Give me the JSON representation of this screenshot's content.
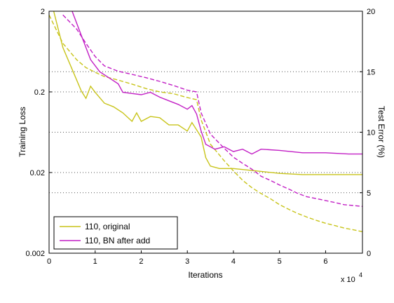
{
  "chart_data": {
    "type": "line",
    "title": "",
    "xlabel": "Iterations",
    "x_multiplier_label": "x 10",
    "x_multiplier_exp": "4",
    "ylabel_left": "Training Loss",
    "ylabel_right": "Test Error (%)",
    "x_ticks": [
      "0",
      "1",
      "2",
      "3",
      "4",
      "5",
      "6"
    ],
    "y_left_ticks": [
      "2",
      "0.2",
      "0.02",
      "0.002"
    ],
    "y_right_ticks": [
      "20",
      "15",
      "10",
      "5",
      "0"
    ],
    "xlim": [
      0,
      6.8
    ],
    "ylim_left": [
      0.002,
      2
    ],
    "ylim_right": [
      0,
      20
    ],
    "y_left_scale": "log",
    "grid": "dotted horizontal",
    "legend_position": "bottom-left",
    "series": [
      {
        "name": "110, original",
        "color": "#c8c41a",
        "train_loss": [
          [
            0.0,
            1.8
          ],
          [
            0.3,
            0.8
          ],
          [
            0.6,
            0.5
          ],
          [
            0.8,
            0.4
          ],
          [
            1.0,
            0.35
          ],
          [
            1.2,
            0.31
          ],
          [
            1.5,
            0.28
          ],
          [
            1.8,
            0.25
          ],
          [
            2.1,
            0.22
          ],
          [
            2.4,
            0.2
          ],
          [
            2.7,
            0.19
          ],
          [
            3.0,
            0.17
          ],
          [
            3.2,
            0.16
          ],
          [
            3.3,
            0.09
          ],
          [
            3.5,
            0.045
          ],
          [
            3.8,
            0.028
          ],
          [
            4.0,
            0.021
          ],
          [
            4.2,
            0.016
          ],
          [
            4.4,
            0.013
          ],
          [
            4.6,
            0.011
          ],
          [
            4.8,
            0.0095
          ],
          [
            5.0,
            0.008
          ],
          [
            5.2,
            0.007
          ],
          [
            5.4,
            0.0062
          ],
          [
            5.6,
            0.0056
          ],
          [
            5.8,
            0.0051
          ],
          [
            6.0,
            0.0047
          ],
          [
            6.2,
            0.0044
          ],
          [
            6.4,
            0.0041
          ],
          [
            6.6,
            0.0039
          ],
          [
            6.8,
            0.0037
          ]
        ],
        "test_error": [
          [
            0.1,
            20
          ],
          [
            0.3,
            17
          ],
          [
            0.5,
            15.2
          ],
          [
            0.7,
            13.4
          ],
          [
            0.8,
            12.8
          ],
          [
            0.9,
            13.8
          ],
          [
            1.0,
            13.3
          ],
          [
            1.2,
            12.4
          ],
          [
            1.4,
            12.1
          ],
          [
            1.6,
            11.6
          ],
          [
            1.8,
            10.9
          ],
          [
            1.9,
            11.6
          ],
          [
            2.0,
            10.9
          ],
          [
            2.2,
            11.3
          ],
          [
            2.4,
            11.2
          ],
          [
            2.6,
            10.6
          ],
          [
            2.8,
            10.6
          ],
          [
            3.0,
            10.1
          ],
          [
            3.1,
            10.8
          ],
          [
            3.2,
            10.2
          ],
          [
            3.3,
            9.6
          ],
          [
            3.4,
            7.9
          ],
          [
            3.5,
            7.2
          ],
          [
            3.7,
            7.0
          ],
          [
            4.0,
            7.0
          ],
          [
            4.5,
            6.8
          ],
          [
            5.0,
            6.6
          ],
          [
            5.5,
            6.5
          ],
          [
            6.0,
            6.5
          ],
          [
            6.5,
            6.5
          ],
          [
            6.8,
            6.5
          ]
        ]
      },
      {
        "name": "110, BN after add",
        "color": "#c21fc5",
        "train_loss": [
          [
            0.3,
            1.8
          ],
          [
            0.6,
            1.2
          ],
          [
            0.8,
            0.8
          ],
          [
            1.0,
            0.55
          ],
          [
            1.2,
            0.42
          ],
          [
            1.5,
            0.36
          ],
          [
            1.8,
            0.33
          ],
          [
            2.1,
            0.3
          ],
          [
            2.4,
            0.27
          ],
          [
            2.7,
            0.24
          ],
          [
            3.0,
            0.21
          ],
          [
            3.2,
            0.2
          ],
          [
            3.3,
            0.11
          ],
          [
            3.5,
            0.06
          ],
          [
            3.8,
            0.04
          ],
          [
            4.0,
            0.031
          ],
          [
            4.2,
            0.026
          ],
          [
            4.4,
            0.022
          ],
          [
            4.6,
            0.018
          ],
          [
            4.8,
            0.016
          ],
          [
            5.0,
            0.014
          ],
          [
            5.2,
            0.0125
          ],
          [
            5.4,
            0.011
          ],
          [
            5.6,
            0.01
          ],
          [
            5.8,
            0.0095
          ],
          [
            6.0,
            0.009
          ],
          [
            6.2,
            0.0085
          ],
          [
            6.4,
            0.008
          ],
          [
            6.6,
            0.0078
          ],
          [
            6.8,
            0.0076
          ]
        ],
        "test_error": [
          [
            0.5,
            20
          ],
          [
            0.7,
            18
          ],
          [
            0.9,
            16
          ],
          [
            1.1,
            15
          ],
          [
            1.3,
            14.5
          ],
          [
            1.5,
            14
          ],
          [
            1.6,
            13.3
          ],
          [
            1.8,
            13.2
          ],
          [
            2.0,
            13.1
          ],
          [
            2.2,
            13.3
          ],
          [
            2.4,
            12.9
          ],
          [
            2.6,
            12.6
          ],
          [
            2.8,
            12.3
          ],
          [
            3.0,
            11.9
          ],
          [
            3.1,
            12.2
          ],
          [
            3.2,
            11.5
          ],
          [
            3.3,
            10.1
          ],
          [
            3.4,
            9.0
          ],
          [
            3.6,
            8.6
          ],
          [
            3.8,
            8.8
          ],
          [
            4.0,
            8.4
          ],
          [
            4.2,
            8.6
          ],
          [
            4.4,
            8.2
          ],
          [
            4.6,
            8.6
          ],
          [
            5.0,
            8.5
          ],
          [
            5.5,
            8.3
          ],
          [
            6.0,
            8.3
          ],
          [
            6.5,
            8.2
          ],
          [
            6.8,
            8.2
          ]
        ]
      }
    ]
  }
}
